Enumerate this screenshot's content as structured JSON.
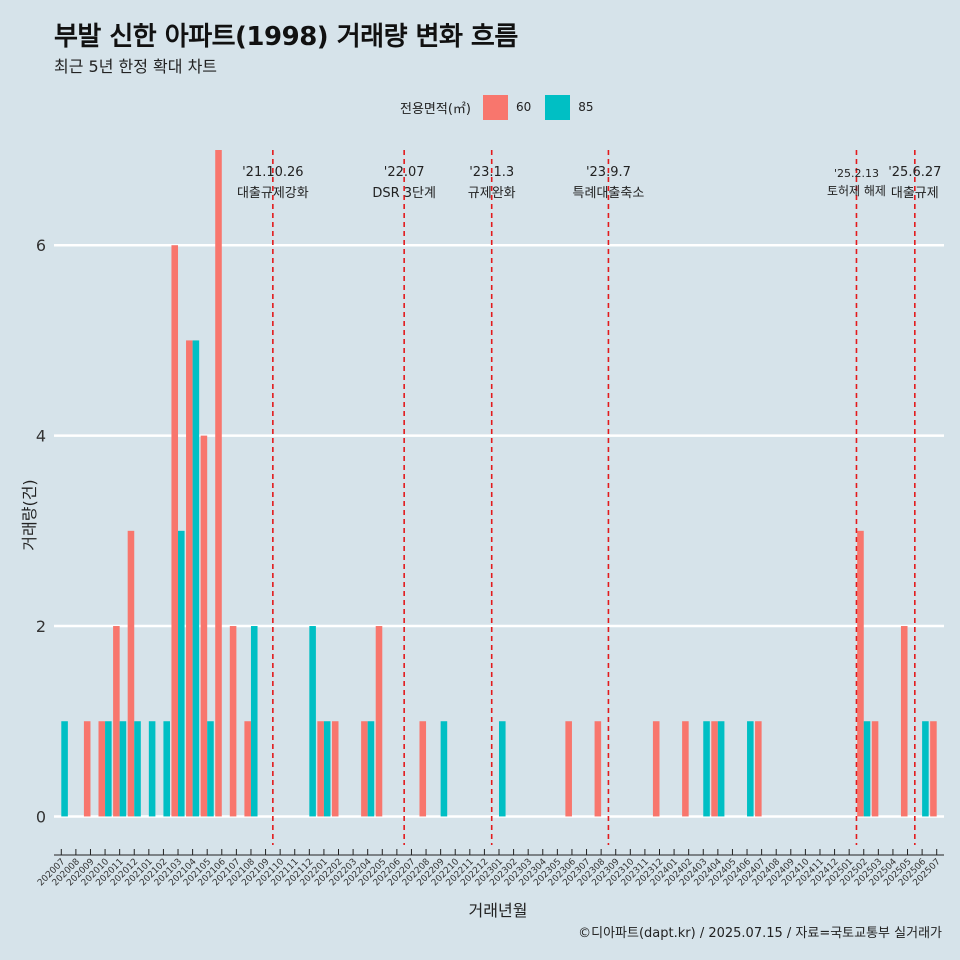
{
  "title": "부발 신한 아파트(1998) 거래량 변화 흐름",
  "subtitle": "최근 5년 한정 확대 차트",
  "caption": "©디아파트(dapt.kr) / 2025.07.15 / 자료=국토교통부 실거래가",
  "legend": {
    "title": "전용면적(㎡)",
    "items": [
      {
        "label": "60",
        "color": "#f8766d"
      },
      {
        "label": "85",
        "color": "#00bfc4"
      }
    ]
  },
  "chart_data": {
    "type": "bar",
    "xlabel": "거래년월",
    "ylabel": "거래량(건)",
    "ylim": [
      -0.3,
      7
    ],
    "yticks": [
      0,
      2,
      4,
      6
    ],
    "grid": "horizontal",
    "legend_position": "top",
    "categories": [
      "202007",
      "202008",
      "202009",
      "202010",
      "202011",
      "202012",
      "202101",
      "202102",
      "202103",
      "202104",
      "202105",
      "202106",
      "202107",
      "202108",
      "202109",
      "202110",
      "202111",
      "202112",
      "202201",
      "202202",
      "202203",
      "202204",
      "202205",
      "202206",
      "202207",
      "202208",
      "202209",
      "202210",
      "202211",
      "202212",
      "202301",
      "202302",
      "202303",
      "202304",
      "202305",
      "202306",
      "202307",
      "202308",
      "202309",
      "202310",
      "202311",
      "202312",
      "202401",
      "202402",
      "202403",
      "202404",
      "202405",
      "202406",
      "202407",
      "202408",
      "202409",
      "202410",
      "202411",
      "202412",
      "202501",
      "202502",
      "202503",
      "202504",
      "202505",
      "202506",
      "202507"
    ],
    "series": [
      {
        "name": "60",
        "color": "#f8766d",
        "values": [
          0,
          0,
          1,
          1,
          2,
          3,
          0,
          0,
          6,
          5,
          4,
          7,
          2,
          1,
          0,
          0,
          0,
          0,
          1,
          1,
          0,
          1,
          2,
          0,
          0,
          1,
          0,
          0,
          0,
          0,
          0,
          0,
          0,
          0,
          0,
          1,
          0,
          1,
          0,
          0,
          0,
          1,
          0,
          1,
          0,
          1,
          0,
          0,
          1,
          0,
          0,
          0,
          0,
          0,
          0,
          3,
          1,
          0,
          2,
          0,
          1
        ]
      },
      {
        "name": "85",
        "color": "#00bfc4",
        "values": [
          1,
          0,
          0,
          1,
          1,
          1,
          1,
          1,
          3,
          5,
          1,
          0,
          0,
          2,
          0,
          0,
          0,
          2,
          1,
          0,
          0,
          1,
          0,
          0,
          0,
          0,
          1,
          0,
          0,
          0,
          1,
          0,
          0,
          0,
          0,
          0,
          0,
          0,
          0,
          0,
          0,
          0,
          0,
          0,
          1,
          1,
          0,
          1,
          0,
          0,
          0,
          0,
          0,
          0,
          0,
          1,
          0,
          0,
          0,
          1,
          0
        ]
      }
    ],
    "events": [
      {
        "date": "'21.10.26",
        "label": "대출규제강화",
        "category": "202110"
      },
      {
        "date": "'22.07",
        "label": "DSR 3단계",
        "category": "202207"
      },
      {
        "date": "'23.1.3",
        "label": "규제완화",
        "category": "202301"
      },
      {
        "date": "'23.9.7",
        "label": "특례대출축소",
        "category": "202309"
      },
      {
        "date": "'25.2.13",
        "label": "토허제 해제",
        "category": "202502"
      },
      {
        "date": "'25.6.27",
        "label": "대출규제",
        "category": "202506"
      }
    ]
  }
}
